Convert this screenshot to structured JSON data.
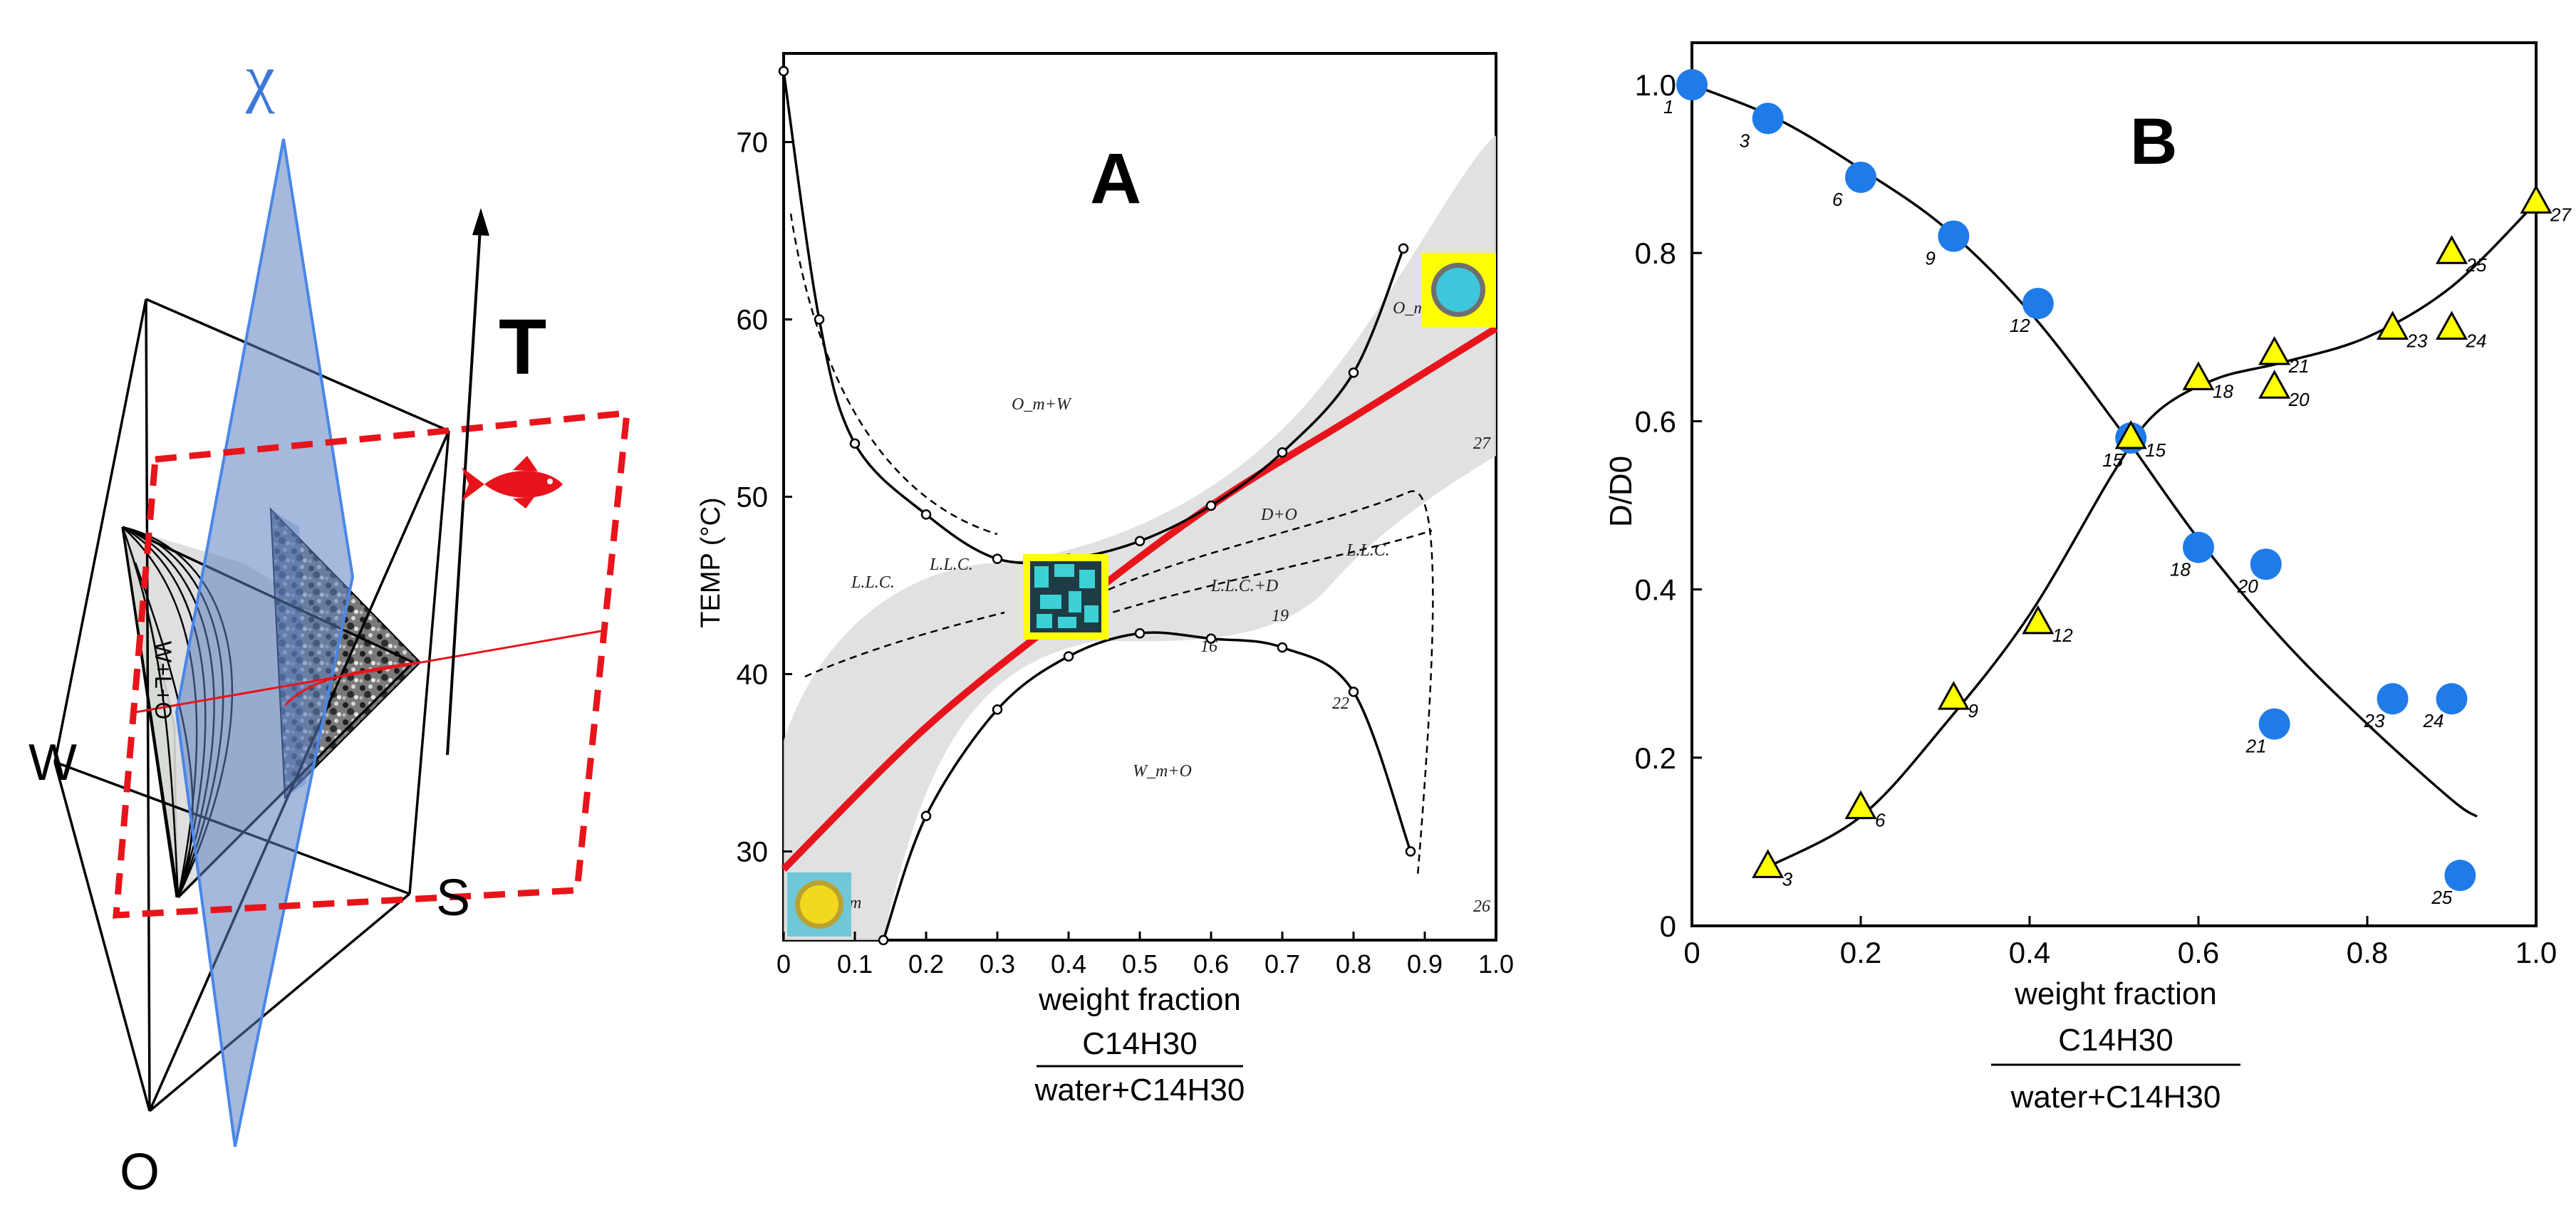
{
  "left_panel": {
    "labels": {
      "chi": "χ",
      "T": "T",
      "W": "W",
      "O": "O",
      "S": "S",
      "region": "W+L+O"
    },
    "colors": {
      "plane_blue": "#5b7fc1",
      "plane_red": "#e8141b",
      "fish": "#e8141b",
      "green": "#b7d9a2"
    },
    "icons": [
      "fish-icon",
      "surfactant-pattern-icon"
    ]
  },
  "chart_data": [
    {
      "id": "A",
      "type": "line",
      "panel_label": "A",
      "title": "",
      "xlabel": "weight fraction",
      "xlabel_numerator": "C14H30",
      "xlabel_denominator": "water+C14H30",
      "ylabel": "TEMP (°C)",
      "xlim": [
        0,
        1.0
      ],
      "ylim": [
        25,
        75
      ],
      "xticks": [
        "0",
        "0.1",
        "0.2",
        "0.3",
        "0.4",
        "0.5",
        "0.6",
        "0.7",
        "0.8",
        "0.9",
        "1.0"
      ],
      "yticks": [
        "30",
        "40",
        "50",
        "60",
        "70"
      ],
      "region_labels": [
        "O_m+W",
        "W_m+O",
        "L.L.C.",
        "L.L.C.",
        "L.L.C.+D",
        "L.L.C.",
        "D+O",
        "O_m",
        "W_m"
      ],
      "point_numbers": [
        "16",
        "19",
        "22",
        "26",
        "27"
      ],
      "series": [
        {
          "name": "red-transition-line",
          "color": "#e8141b",
          "x": [
            0,
            0.2,
            0.4,
            0.6,
            0.8,
            1.0
          ],
          "y": [
            29,
            37,
            43.5,
            49.5,
            54.5,
            59.5
          ]
        },
        {
          "name": "upper-boundary",
          "color": "#000000",
          "x": [
            0.0,
            0.05,
            0.1,
            0.2,
            0.3,
            0.4,
            0.5,
            0.6,
            0.7,
            0.8,
            0.87
          ],
          "y": [
            74,
            60,
            53,
            49,
            46.5,
            46.5,
            47.5,
            49.5,
            52.5,
            57,
            64
          ]
        },
        {
          "name": "lower-boundary",
          "color": "#000000",
          "x": [
            0.14,
            0.2,
            0.3,
            0.4,
            0.5,
            0.6,
            0.7,
            0.8,
            0.88
          ],
          "y": [
            25,
            32,
            38,
            41,
            42.3,
            42,
            41.5,
            39,
            30
          ]
        }
      ],
      "markers": [
        "bicontinuous-structure",
        "oil-swollen-micelle",
        "water-swollen-micelle"
      ]
    },
    {
      "id": "B",
      "type": "scatter",
      "panel_label": "B",
      "title": "",
      "xlabel": "weight fraction",
      "xlabel_numerator": "C14H30",
      "xlabel_denominator": "water+C14H30",
      "ylabel": "D/D0",
      "xlim": [
        0,
        1.0
      ],
      "ylim": [
        0,
        1.05
      ],
      "xticks": [
        "0",
        "0.2",
        "0.4",
        "0.6",
        "0.8",
        "1.0"
      ],
      "yticks": [
        "0",
        "0.2",
        "0.4",
        "0.6",
        "0.8",
        "1.0"
      ],
      "series": [
        {
          "name": "water",
          "marker": "circle",
          "color": "#1f7be8",
          "x": [
            0.0,
            0.09,
            0.2,
            0.31,
            0.41,
            0.52,
            0.6,
            0.68,
            0.69,
            0.83,
            0.9,
            0.91
          ],
          "y": [
            1.0,
            0.96,
            0.89,
            0.82,
            0.74,
            0.58,
            0.45,
            0.43,
            0.24,
            0.27,
            0.27,
            0.06
          ],
          "labels": [
            "1",
            "3",
            "6",
            "9",
            "12",
            "15",
            "18",
            "20",
            "21",
            "23",
            "24",
            "25"
          ]
        },
        {
          "name": "oil",
          "marker": "triangle",
          "color": "#ffff00",
          "x": [
            0.09,
            0.2,
            0.31,
            0.41,
            0.52,
            0.6,
            0.69,
            0.69,
            0.83,
            0.9,
            0.9,
            1.0
          ],
          "y": [
            0.07,
            0.14,
            0.27,
            0.36,
            0.58,
            0.65,
            0.68,
            0.64,
            0.71,
            0.71,
            0.8,
            0.86
          ],
          "labels": [
            "3",
            "6",
            "9",
            "12",
            "15",
            "18",
            "21",
            "20",
            "23",
            "24",
            "25",
            "27"
          ]
        }
      ],
      "fit_curves": [
        {
          "name": "water-fit",
          "x": [
            0,
            0.1,
            0.2,
            0.3,
            0.4,
            0.5,
            0.6,
            0.7,
            0.8,
            0.9,
            0.93
          ],
          "y": [
            1.0,
            0.96,
            0.9,
            0.83,
            0.73,
            0.6,
            0.46,
            0.34,
            0.24,
            0.15,
            0.13
          ]
        },
        {
          "name": "oil-fit",
          "x": [
            0.09,
            0.2,
            0.3,
            0.4,
            0.5,
            0.55,
            0.62,
            0.7,
            0.8,
            0.9,
            1.0
          ],
          "y": [
            0.07,
            0.13,
            0.24,
            0.37,
            0.54,
            0.61,
            0.65,
            0.67,
            0.7,
            0.76,
            0.86
          ]
        }
      ]
    }
  ]
}
